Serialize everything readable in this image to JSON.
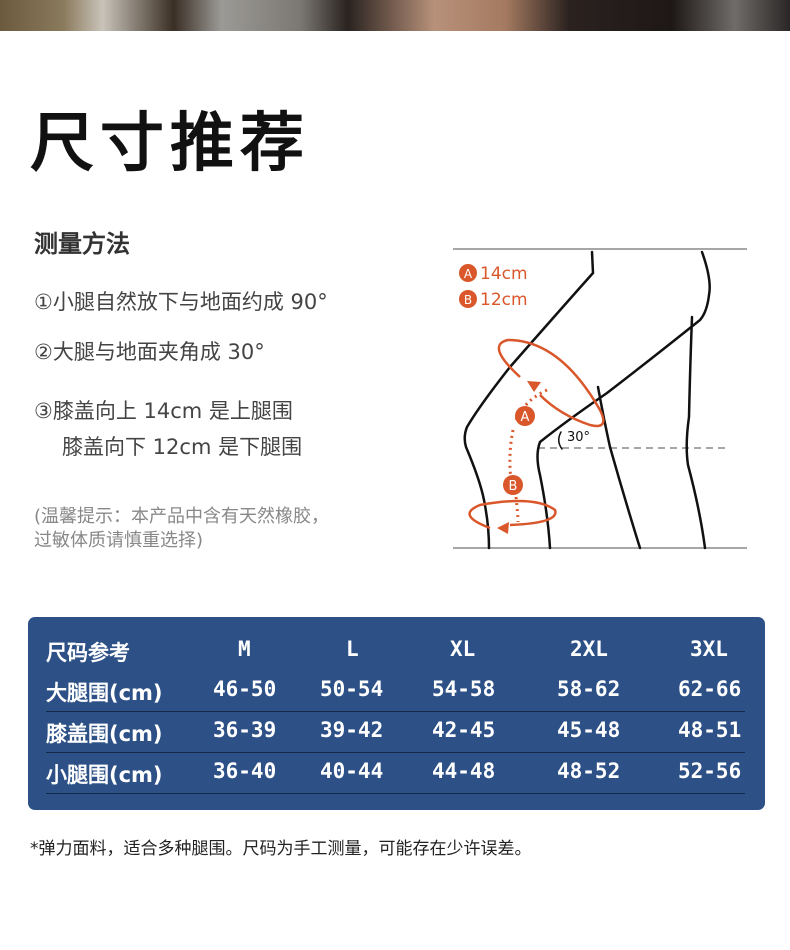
{
  "title": "尺寸推荐",
  "method": {
    "heading": "测量方法",
    "steps": [
      "①小腿自然放下与地面约成 90°",
      "②大腿与地面夹角成 30°",
      "③膝盖向上 14cm 是上腿围",
      "膝盖向下 12cm 是下腿围"
    ],
    "note": [
      "(温馨提示：本产品中含有天然橡胶，",
      "过敏体质请慎重选择)"
    ]
  },
  "diagram": {
    "legend": [
      {
        "marker": "A",
        "text": "14cm"
      },
      {
        "marker": "B",
        "text": "12cm"
      }
    ],
    "angle_label": "30°",
    "accent": "#d9572a"
  },
  "size_table": {
    "background": "#2d5187",
    "header": [
      "尺码参考",
      "M",
      "L",
      "XL",
      "2XL",
      "3XL"
    ],
    "rows": [
      [
        "大腿围(cm)",
        "46-50",
        "50-54",
        "54-58",
        "58-62",
        "62-66"
      ],
      [
        "膝盖围(cm)",
        "36-39",
        "39-42",
        "42-45",
        "45-48",
        "48-51"
      ],
      [
        "小腿围(cm)",
        "36-40",
        "40-44",
        "44-48",
        "48-52",
        "52-56"
      ]
    ]
  },
  "footer": "*弹力面料，适合多种腿围。尺码为手工测量，可能存在少许误差。"
}
